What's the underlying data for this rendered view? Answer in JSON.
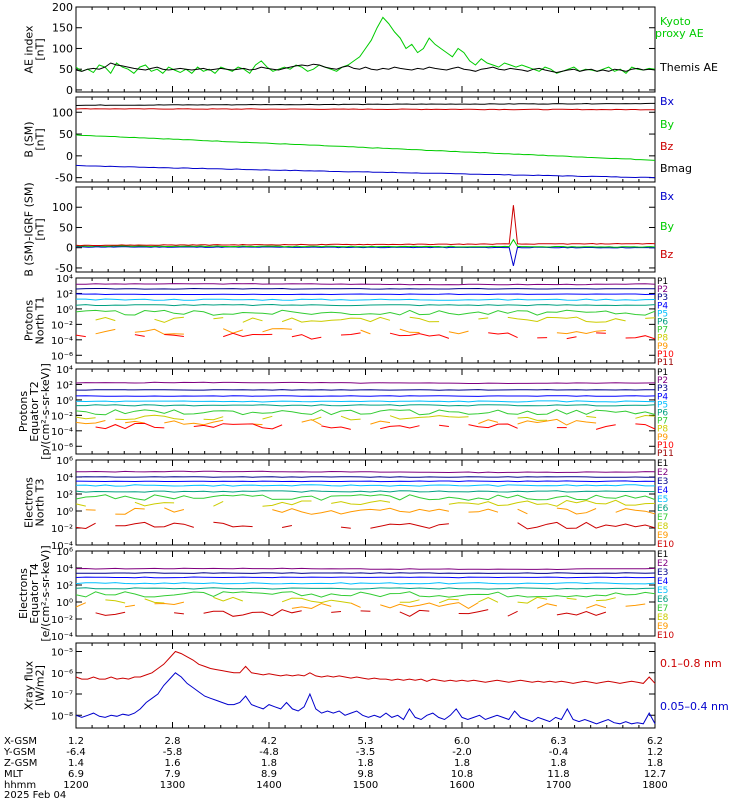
{
  "chart_data": [
    {
      "type": "line",
      "id": "ae",
      "ylabel": [
        "AE index",
        "[nT]"
      ],
      "ylim": [
        -5,
        200
      ],
      "yticks": [
        0,
        50,
        100,
        150,
        200
      ],
      "series": [
        {
          "name": "Kyoto proxy AE",
          "color": "#00cc00",
          "values": [
            55,
            45,
            50,
            42,
            60,
            55,
            40,
            65,
            55,
            50,
            40,
            55,
            60,
            45,
            50,
            40,
            55,
            48,
            42,
            50,
            40,
            55,
            45,
            50,
            40,
            55,
            50,
            45,
            55,
            50,
            40,
            60,
            70,
            55,
            45,
            50,
            55,
            50,
            60,
            55,
            45,
            50,
            60,
            55,
            50,
            45,
            55,
            60,
            70,
            80,
            100,
            120,
            150,
            175,
            160,
            140,
            125,
            100,
            110,
            90,
            100,
            125,
            110,
            100,
            90,
            80,
            100,
            90,
            70,
            60,
            75,
            65,
            60,
            55,
            65,
            60,
            55,
            60,
            55,
            50,
            45,
            55,
            50,
            40,
            45,
            50,
            55,
            45,
            50,
            48,
            45,
            50,
            55,
            45,
            50,
            40,
            55,
            50,
            48,
            52,
            50
          ]
        },
        {
          "name": "Themis AE",
          "color": "#000000",
          "values": [
            48,
            45,
            50,
            52,
            50,
            55,
            65,
            60,
            58,
            55,
            52,
            50,
            48,
            52,
            55,
            50,
            48,
            50,
            52,
            50,
            48,
            50,
            52,
            48,
            50,
            52,
            50,
            48,
            50,
            52,
            48,
            50,
            55,
            52,
            50,
            48,
            52,
            55,
            58,
            60,
            58,
            62,
            60,
            55,
            52,
            50,
            55,
            58,
            52,
            50,
            55,
            50,
            48,
            52,
            50,
            55,
            52,
            50,
            48,
            52,
            50,
            55,
            52,
            50,
            48,
            52,
            55,
            50,
            48,
            45,
            50,
            52,
            55,
            50,
            48,
            52,
            50,
            48,
            45,
            50,
            52,
            48,
            45,
            42,
            45,
            48,
            50,
            45,
            48,
            50,
            45,
            48,
            45,
            50,
            48,
            45,
            50,
            52,
            48,
            50,
            48
          ]
        }
      ]
    },
    {
      "type": "line",
      "id": "b_sm",
      "ylabel": [
        "B (SM)",
        "[nT]"
      ],
      "ylim": [
        -60,
        135
      ],
      "yticks": [
        -50,
        0,
        50,
        100
      ],
      "series": [
        {
          "name": "Bx",
          "color": "#0000cc",
          "start": -22,
          "end": -50
        },
        {
          "name": "By",
          "color": "#00cc00",
          "start": 48,
          "end": -10
        },
        {
          "name": "Bz",
          "color": "#cc0000",
          "start": 108,
          "end": 106
        },
        {
          "name": "Bmag",
          "color": "#000000",
          "start": 116,
          "end": 120
        }
      ]
    },
    {
      "type": "line",
      "id": "b_sm_igrf",
      "ylabel": [
        "B (SM)-IGRF (SM)",
        "[nT]"
      ],
      "ylim": [
        -60,
        150
      ],
      "yticks": [
        -50,
        0,
        50,
        100
      ],
      "series": [
        {
          "name": "Bx",
          "color": "#0000cc"
        },
        {
          "name": "By",
          "color": "#00cc00"
        },
        {
          "name": "Bz",
          "color": "#cc0000"
        }
      ]
    },
    {
      "type": "line",
      "id": "protons_t1",
      "ylabel": [
        "Protons",
        "North T1"
      ],
      "scale": "log",
      "ylim_log": [
        -7,
        4
      ],
      "ytick_labels": [
        "10⁴",
        "10²",
        "10⁰",
        "10⁻²",
        "10⁻⁴",
        "10⁻⁶"
      ],
      "channels": [
        "P1",
        "P2",
        "P3",
        "P4",
        "P5",
        "P6",
        "P7",
        "P8",
        "P9",
        "P10",
        "P11"
      ],
      "levels_log": [
        3.2,
        2.6,
        1.9,
        1.2,
        0.5,
        -0.5,
        -1.4,
        -2.9,
        -3.5
      ]
    },
    {
      "type": "line",
      "id": "protons_t2",
      "ylabel": [
        "Protons",
        "Equator T2",
        "[p/(cm²-s-sr-keV)]"
      ],
      "scale": "log",
      "ylim_log": [
        -7,
        4
      ],
      "ytick_labels": [
        "10⁴",
        "10²",
        "10⁰",
        "10⁻²",
        "10⁻⁴",
        "10⁻⁶"
      ],
      "channels": [
        "P1",
        "P2",
        "P3",
        "P4",
        "P5",
        "P6",
        "P7",
        "P8",
        "P9",
        "P10",
        "P11"
      ],
      "levels_log": [
        2.2,
        1.3,
        0.5,
        -0.2,
        -0.7,
        -1.6,
        -2.3,
        -2.9,
        -3.4
      ]
    },
    {
      "type": "line",
      "id": "electrons_t3",
      "ylabel": [
        "Electrons",
        "North T3"
      ],
      "scale": "log",
      "ylim_log": [
        -4,
        6
      ],
      "ytick_labels": [
        "10⁶",
        "10⁴",
        "10²",
        "10⁰",
        "10⁻²",
        "10⁻⁴"
      ],
      "channels": [
        "E1",
        "E2",
        "E3",
        "E4",
        "E5",
        "E6",
        "E7",
        "E8",
        "E9",
        "E10"
      ],
      "levels_log": [
        4.6,
        4.0,
        3.5,
        3.0,
        2.3,
        1.6,
        0.9,
        0.0,
        -1.7
      ]
    },
    {
      "type": "line",
      "id": "electrons_t4",
      "ylabel": [
        "Electrons",
        "Equator T4",
        "[e/(cm²-s-sr-keV)]"
      ],
      "scale": "log",
      "ylim_log": [
        -4,
        6
      ],
      "ytick_labels": [
        "10⁶",
        "10⁴",
        "10²",
        "10⁰",
        "10⁻²",
        "10⁻⁴"
      ],
      "channels": [
        "E1",
        "E2",
        "E3",
        "E4",
        "E5",
        "E6",
        "E7",
        "E8",
        "E9",
        "E10"
      ],
      "levels_log": [
        3.9,
        3.4,
        2.9,
        2.2,
        1.6,
        0.9,
        0.2,
        -0.4,
        -1.3
      ]
    },
    {
      "type": "line",
      "id": "xray",
      "ylabel": [
        "Xray flux",
        "[W/m2]"
      ],
      "scale": "log",
      "ylim_log": [
        -8.6,
        -4.6
      ],
      "ytick_labels": [
        "10⁻⁵",
        "10⁻⁶",
        "10⁻⁷",
        "10⁻⁸"
      ],
      "series": [
        {
          "name": "0.1–0.8 nm",
          "color": "#cc0000",
          "values": [
            -6.2,
            -6.3,
            -6.3,
            -6.2,
            -6.3,
            -6.3,
            -6.2,
            -6.3,
            -6.25,
            -6.3,
            -6.2,
            -6.2,
            -6.1,
            -6.0,
            -5.8,
            -5.6,
            -5.3,
            -5.0,
            -5.1,
            -5.25,
            -5.4,
            -5.6,
            -5.7,
            -5.8,
            -5.85,
            -5.9,
            -5.95,
            -6.0,
            -6.0,
            -5.7,
            -6.0,
            -6.05,
            -6.1,
            -6.05,
            -6.1,
            -6.15,
            -6.1,
            -6.15,
            -6.1,
            -6.15,
            -6.0,
            -6.15,
            -6.2,
            -6.15,
            -6.2,
            -6.15,
            -6.2,
            -6.25,
            -6.2,
            -6.25,
            -6.3,
            -6.25,
            -6.3,
            -6.3,
            -6.35,
            -6.3,
            -6.35,
            -6.3,
            -6.35,
            -6.3,
            -6.4,
            -6.3,
            -6.35,
            -6.4,
            -6.35,
            -6.4,
            -6.35,
            -6.4,
            -6.35,
            -6.4,
            -6.45,
            -6.4,
            -6.35,
            -6.4,
            -6.45,
            -6.4,
            -6.35,
            -6.4,
            -6.45,
            -6.4,
            -6.45,
            -6.4,
            -6.45,
            -6.4,
            -6.45,
            -6.5,
            -6.45,
            -6.4,
            -6.45,
            -6.5,
            -6.45,
            -6.4,
            -6.45,
            -6.5,
            -6.45,
            -6.4,
            -6.45,
            -6.5,
            -6.2,
            -6.5
          ]
        },
        {
          "name": "0.05–0.4 nm",
          "color": "#0000cc",
          "values": [
            -8.0,
            -8.1,
            -8.0,
            -7.9,
            -8.05,
            -8.1,
            -8.0,
            -8.05,
            -7.95,
            -8.0,
            -7.9,
            -7.7,
            -7.4,
            -7.2,
            -7.0,
            -6.6,
            -6.3,
            -6.0,
            -6.2,
            -6.5,
            -6.7,
            -6.9,
            -7.1,
            -7.2,
            -7.3,
            -7.4,
            -7.5,
            -7.5,
            -7.4,
            -7.1,
            -7.5,
            -7.6,
            -7.7,
            -7.5,
            -7.6,
            -7.7,
            -7.4,
            -7.7,
            -7.8,
            -7.6,
            -7.0,
            -7.7,
            -7.9,
            -7.8,
            -7.9,
            -7.8,
            -8.0,
            -7.9,
            -7.8,
            -8.0,
            -8.1,
            -8.0,
            -8.1,
            -7.9,
            -8.1,
            -8.0,
            -8.2,
            -7.7,
            -8.1,
            -8.2,
            -8.0,
            -7.9,
            -8.1,
            -8.2,
            -8.0,
            -7.7,
            -8.1,
            -8.2,
            -8.1,
            -8.0,
            -8.2,
            -8.1,
            -8.0,
            -8.1,
            -8.2,
            -7.8,
            -8.1,
            -8.2,
            -8.3,
            -8.1,
            -8.2,
            -8.3,
            -8.1,
            -8.2,
            -7.7,
            -8.2,
            -8.3,
            -8.2,
            -8.3,
            -8.4,
            -8.3,
            -8.2,
            -8.35,
            -8.4,
            -8.3,
            -8.4,
            -8.35,
            -8.4,
            -7.9,
            -8.4
          ]
        }
      ]
    }
  ],
  "labels": {
    "ae_kyoto": [
      "Kyoto",
      "proxy AE"
    ],
    "ae_themis": "Themis AE"
  },
  "xaxis": {
    "row_labels": [
      "X-GSM",
      "Y-GSM",
      "Z-GSM",
      "MLT",
      "hhmm"
    ],
    "columns": [
      [
        "1.2",
        "-6.4",
        "1.4",
        "6.9",
        "1200"
      ],
      [
        "2.8",
        "-5.8",
        "1.6",
        "7.9",
        "1300"
      ],
      [
        "4.2",
        "-4.8",
        "1.8",
        "8.9",
        "1400"
      ],
      [
        "5.3",
        "-3.5",
        "1.8",
        "9.8",
        "1500"
      ],
      [
        "6.0",
        "-2.0",
        "1.8",
        "10.8",
        "1600"
      ],
      [
        "6.3",
        "-0.4",
        "1.8",
        "11.8",
        "1700"
      ],
      [
        "6.2",
        "1.2",
        "1.8",
        "12.7",
        "1800"
      ]
    ],
    "date": "2025 Feb 04"
  },
  "colors": {
    "P": [
      "#000000",
      "#800080",
      "#00008b",
      "#0000ff",
      "#00bfff",
      "#00a080",
      "#33cc33",
      "#cccc00",
      "#ff9900",
      "#ff0000",
      "#990000"
    ],
    "E": [
      "#000000",
      "#800080",
      "#00008b",
      "#0000ff",
      "#00bfff",
      "#00a080",
      "#33cc33",
      "#cccc00",
      "#ff9900",
      "#cc0000"
    ]
  }
}
